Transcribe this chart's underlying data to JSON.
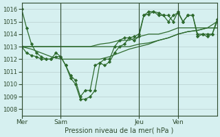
{
  "background_color": "#d6f0f0",
  "grid_color": "#c0d8d8",
  "line_color": "#2d6a2d",
  "marker_color": "#2d6a2d",
  "xlabel": "Pression niveau de la mer( hPa )",
  "ylim": [
    1007.5,
    1016.5
  ],
  "yticks": [
    1008,
    1009,
    1010,
    1011,
    1012,
    1013,
    1014,
    1015,
    1016
  ],
  "day_labels": [
    "Mer",
    "Sam",
    "Jeu",
    "Ven"
  ],
  "day_positions": [
    0,
    24,
    72,
    96
  ],
  "total_hours": 120,
  "series": [
    {
      "x": [
        0,
        6,
        12,
        18,
        24,
        30,
        36,
        42,
        48,
        54,
        60,
        66,
        72,
        78,
        84,
        90,
        96,
        102,
        108,
        114,
        120
      ],
      "y": [
        1013.0,
        1013.0,
        1013.0,
        1013.0,
        1013.0,
        1013.0,
        1013.0,
        1013.0,
        1013.2,
        1013.3,
        1013.5,
        1013.5,
        1013.8,
        1014.0,
        1014.0,
        1014.2,
        1014.5,
        1014.5,
        1014.5,
        1014.5,
        1014.5
      ],
      "markers": false
    },
    {
      "x": [
        0,
        6,
        12,
        18,
        24,
        30,
        36,
        42,
        48,
        54,
        60,
        66,
        72,
        78,
        84,
        90,
        96,
        102,
        108,
        114,
        120
      ],
      "y": [
        1013.0,
        1013.0,
        1013.0,
        1013.0,
        1013.0,
        1013.0,
        1013.0,
        1013.0,
        1013.0,
        1013.0,
        1013.0,
        1013.0,
        1013.2,
        1013.3,
        1013.5,
        1013.7,
        1014.0,
        1014.2,
        1014.3,
        1014.5,
        1014.5
      ],
      "markers": false
    },
    {
      "x": [
        0,
        6,
        12,
        18,
        24,
        30,
        36,
        42,
        48,
        54,
        60,
        66,
        72,
        78,
        84,
        90,
        96,
        102,
        108,
        114,
        120
      ],
      "y": [
        1013.0,
        1012.8,
        1012.5,
        1012.2,
        1012.0,
        1012.0,
        1012.0,
        1012.0,
        1012.0,
        1012.2,
        1012.5,
        1012.8,
        1013.0,
        1013.2,
        1013.5,
        1013.7,
        1014.0,
        1014.2,
        1014.3,
        1014.5,
        1015.0
      ],
      "markers": false
    },
    {
      "x": [
        0,
        3,
        6,
        9,
        12,
        15,
        18,
        21,
        24,
        27,
        30,
        33,
        36,
        39,
        42,
        45,
        48,
        51,
        54,
        57,
        60,
        63,
        66,
        69,
        72,
        75,
        78,
        81,
        84,
        87,
        90,
        93,
        96,
        99,
        102,
        105,
        108,
        111,
        114,
        117,
        120
      ],
      "y": [
        1016.0,
        1014.5,
        1013.2,
        1012.5,
        1012.2,
        1012.0,
        1012.0,
        1012.2,
        1012.2,
        1011.5,
        1010.7,
        1010.3,
        1009.0,
        1009.5,
        1009.5,
        1011.5,
        1011.7,
        1012.0,
        1012.0,
        1013.0,
        1013.5,
        1013.7,
        1013.7,
        1013.5,
        1013.8,
        1015.5,
        1015.6,
        1015.8,
        1015.7,
        1015.5,
        1015.5,
        1015.0,
        1015.8,
        1015.0,
        1015.5,
        1015.5,
        1013.8,
        1014.0,
        1013.8,
        1014.0,
        1015.0
      ],
      "markers": true
    },
    {
      "x": [
        0,
        3,
        6,
        9,
        12,
        15,
        18,
        21,
        24,
        27,
        30,
        33,
        36,
        39,
        42,
        45,
        48,
        51,
        54,
        57,
        60,
        63,
        66,
        69,
        72,
        75,
        78,
        81,
        84,
        87,
        90,
        93,
        96,
        99,
        102,
        105,
        108,
        111,
        114,
        117,
        120
      ],
      "y": [
        1013.0,
        1012.5,
        1012.3,
        1012.2,
        1012.0,
        1012.0,
        1012.0,
        1012.5,
        1012.2,
        1011.5,
        1010.5,
        1010.0,
        1008.8,
        1008.8,
        1009.0,
        1009.5,
        1011.7,
        1011.5,
        1011.8,
        1012.5,
        1013.0,
        1013.2,
        1013.7,
        1013.8,
        1014.0,
        1015.5,
        1015.8,
        1015.8,
        1015.5,
        1015.5,
        1015.0,
        1015.5,
        1015.7,
        1015.0,
        1015.5,
        1015.5,
        1014.0,
        1014.0,
        1014.0,
        1014.0,
        1015.2
      ],
      "markers": true
    }
  ]
}
